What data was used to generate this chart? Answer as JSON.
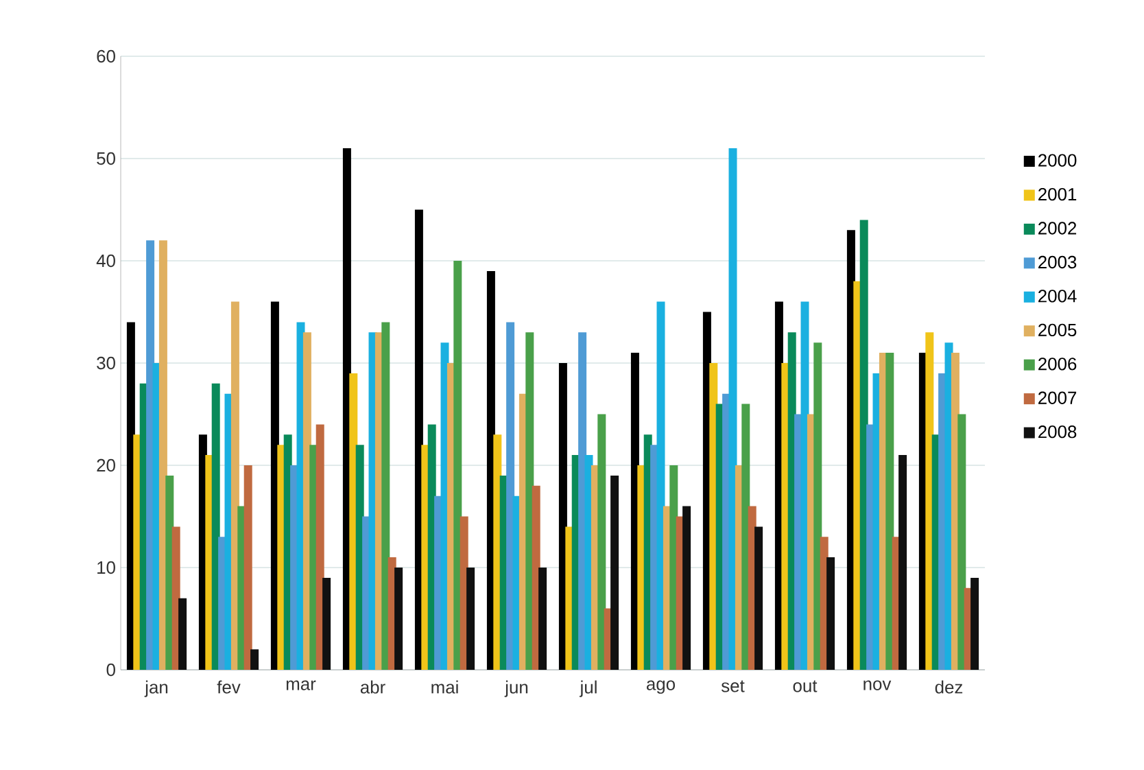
{
  "chart_data": {
    "type": "bar",
    "categories": [
      "jan",
      "fev",
      "mar",
      "abr",
      "mai",
      "jun",
      "jul",
      "ago",
      "set",
      "out",
      "nov",
      "dez"
    ],
    "series": [
      {
        "name": "2000",
        "color": "#000000",
        "values": [
          34,
          23,
          36,
          51,
          45,
          39,
          30,
          31,
          35,
          36,
          43,
          31
        ]
      },
      {
        "name": "2001",
        "color": "#f0c419",
        "values": [
          23,
          21,
          22,
          29,
          22,
          23,
          14,
          20,
          30,
          30,
          38,
          33
        ]
      },
      {
        "name": "2002",
        "color": "#0a8a5a",
        "values": [
          28,
          28,
          23,
          22,
          24,
          19,
          21,
          23,
          26,
          33,
          44,
          23
        ]
      },
      {
        "name": "2003",
        "color": "#4f9bd5",
        "values": [
          42,
          13,
          20,
          15,
          17,
          34,
          33,
          22,
          27,
          25,
          24,
          29
        ]
      },
      {
        "name": "2004",
        "color": "#1ab0e0",
        "values": [
          30,
          27,
          34,
          33,
          32,
          17,
          21,
          36,
          51,
          36,
          29,
          32
        ]
      },
      {
        "name": "2005",
        "color": "#e0b060",
        "values": [
          42,
          36,
          33,
          33,
          30,
          27,
          20,
          16,
          20,
          25,
          31,
          31
        ]
      },
      {
        "name": "2006",
        "color": "#4aa04a",
        "values": [
          19,
          16,
          22,
          34,
          40,
          33,
          25,
          20,
          26,
          32,
          31,
          25
        ]
      },
      {
        "name": "2007",
        "color": "#c06a40",
        "values": [
          14,
          20,
          24,
          11,
          15,
          18,
          6,
          15,
          16,
          13,
          13,
          8
        ]
      },
      {
        "name": "2008",
        "color": "#111111",
        "values": [
          7,
          2,
          9,
          10,
          10,
          10,
          19,
          16,
          14,
          11,
          21,
          9
        ]
      }
    ],
    "ylim": [
      0,
      60
    ],
    "yticks": [
      0,
      10,
      20,
      30,
      40,
      50,
      60
    ],
    "grid": "y",
    "legend": "right"
  }
}
